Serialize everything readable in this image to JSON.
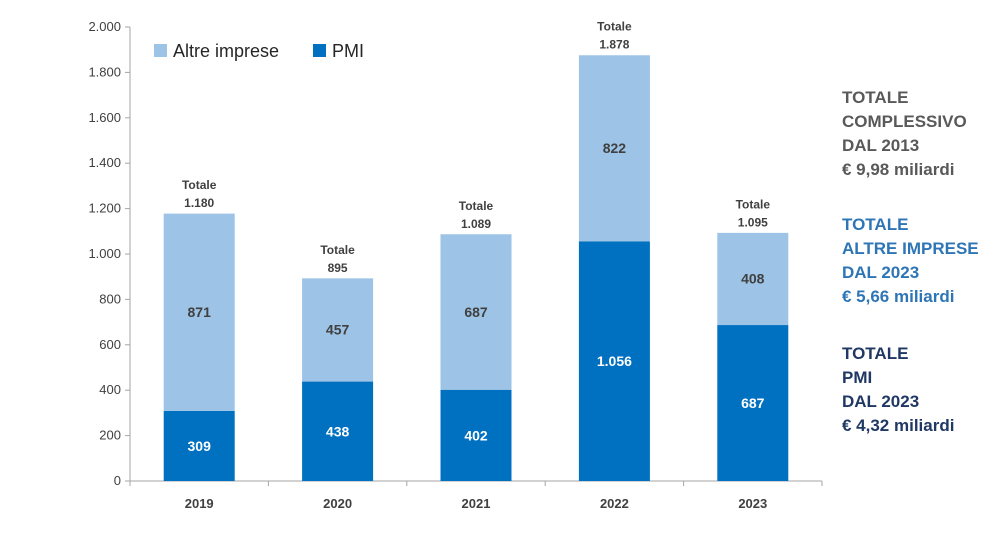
{
  "chart_data": {
    "type": "bar",
    "stacked": true,
    "categories": [
      "2019",
      "2020",
      "2021",
      "2022",
      "2023"
    ],
    "series": [
      {
        "name": "PMI",
        "values": [
          309,
          438,
          402,
          1056,
          687
        ],
        "labels": [
          "309",
          "438",
          "402",
          "1.056",
          "687"
        ],
        "color": "#0070c0"
      },
      {
        "name": "Altre imprese",
        "values": [
          871,
          457,
          687,
          822,
          408
        ],
        "labels": [
          "871",
          "457",
          "687",
          "822",
          "408"
        ],
        "color": "#9dc3e6"
      }
    ],
    "totals": {
      "caption": "Totale",
      "values": [
        1180,
        895,
        1089,
        1878,
        1095
      ],
      "labels": [
        "1.180",
        "895",
        "1.089",
        "1.878",
        "1.095"
      ]
    },
    "ylim": [
      0,
      2000
    ],
    "yticks": [
      0,
      200,
      400,
      600,
      800,
      1000,
      1200,
      1400,
      1600,
      1800,
      2000
    ],
    "ytick_labels": [
      "0",
      "200",
      "400",
      "600",
      "800",
      "1.000",
      "1.200",
      "1.400",
      "1.600",
      "1.800",
      "2.000"
    ],
    "legend": {
      "placement": "top-left",
      "items": [
        "Altre imprese",
        "PMI"
      ]
    },
    "grid": false,
    "title": "",
    "xlabel": "",
    "ylabel": ""
  },
  "summary": [
    {
      "lines": [
        "TOTALE",
        "COMPLESSIVO",
        "DAL 2013",
        "€ 9,98 miliardi"
      ],
      "color": "#595959"
    },
    {
      "lines": [
        "TOTALE",
        "ALTRE IMPRESE",
        "DAL 2023",
        "€ 5,66 miliardi"
      ],
      "color": "#2e75b6"
    },
    {
      "lines": [
        "TOTALE",
        "PMI",
        "DAL 2023",
        "€ 4,32 miliardi"
      ],
      "color": "#203864"
    }
  ]
}
